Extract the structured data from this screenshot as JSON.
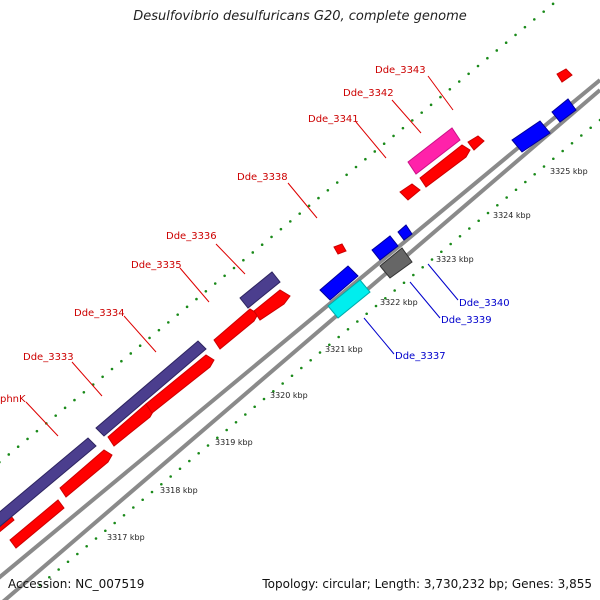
{
  "title": "Desulfovibrio desulfuricans G20, complete genome",
  "footer": {
    "accession": "Accession: NC_007519",
    "summary": "Topology: circular; Length: 3,730,232 bp; Genes: 3,855"
  },
  "colors": {
    "forward_cds": "#ff0000",
    "reverse_cds": "#0000ff",
    "forward_label": "#cc0000",
    "reverse_label": "#0000cc",
    "dark_gene": "#4b3e8e",
    "pink_gene": "#ff22aa",
    "cyan_gene": "#00eeee",
    "gray_gene": "#666666",
    "backbone": "#888888",
    "tick": "#1a8a1a"
  },
  "kbp_ticks": [
    "3317 kbp",
    "3318 kbp",
    "3319 kbp",
    "3320 kbp",
    "3321 kbp",
    "3322 kbp",
    "3323 kbp",
    "3324 kbp",
    "3325 kbp"
  ],
  "gene_labels": [
    {
      "id": "Dde_3343",
      "strand": "fwd"
    },
    {
      "id": "Dde_3342",
      "strand": "fwd"
    },
    {
      "id": "Dde_3341",
      "strand": "fwd"
    },
    {
      "id": "Dde_3338",
      "strand": "fwd"
    },
    {
      "id": "Dde_3336",
      "strand": "fwd"
    },
    {
      "id": "Dde_3335",
      "strand": "fwd"
    },
    {
      "id": "Dde_3334",
      "strand": "fwd"
    },
    {
      "id": "Dde_3333",
      "strand": "fwd"
    },
    {
      "id": "phnK",
      "strand": "fwd"
    },
    {
      "id": "Dde_3340",
      "strand": "rev"
    },
    {
      "id": "Dde_3339",
      "strand": "rev"
    },
    {
      "id": "Dde_3337",
      "strand": "rev"
    }
  ]
}
